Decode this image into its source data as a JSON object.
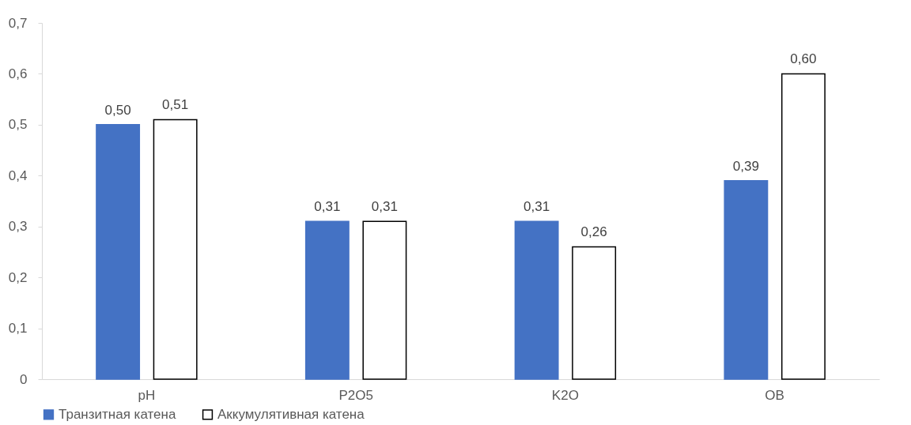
{
  "chart_data": {
    "type": "bar",
    "categories": [
      "pH",
      "P2O5",
      "K2O",
      "ОВ"
    ],
    "series": [
      {
        "name": "Транзитная катена",
        "color": "#4472c4",
        "values": [
          0.5,
          0.31,
          0.31,
          0.39
        ],
        "value_labels": [
          "0,50",
          "0,31",
          "0,31",
          "0,39"
        ]
      },
      {
        "name": "Аккумулятивная катена",
        "color": "#ffffff",
        "values": [
          0.51,
          0.31,
          0.26,
          0.6
        ],
        "value_labels": [
          "0,51",
          "0,31",
          "0,26",
          "0,60"
        ]
      }
    ],
    "ylim": [
      0,
      0.7
    ],
    "yticks": [
      {
        "value": 0,
        "label": "0"
      },
      {
        "value": 0.1,
        "label": "0,1"
      },
      {
        "value": 0.2,
        "label": "0,2"
      },
      {
        "value": 0.3,
        "label": "0,3"
      },
      {
        "value": 0.4,
        "label": "0,4"
      },
      {
        "value": 0.5,
        "label": "0,5"
      },
      {
        "value": 0.6,
        "label": "0,6"
      },
      {
        "value": 0.7,
        "label": "0,7"
      }
    ],
    "grid": false,
    "legend": "bottom"
  }
}
